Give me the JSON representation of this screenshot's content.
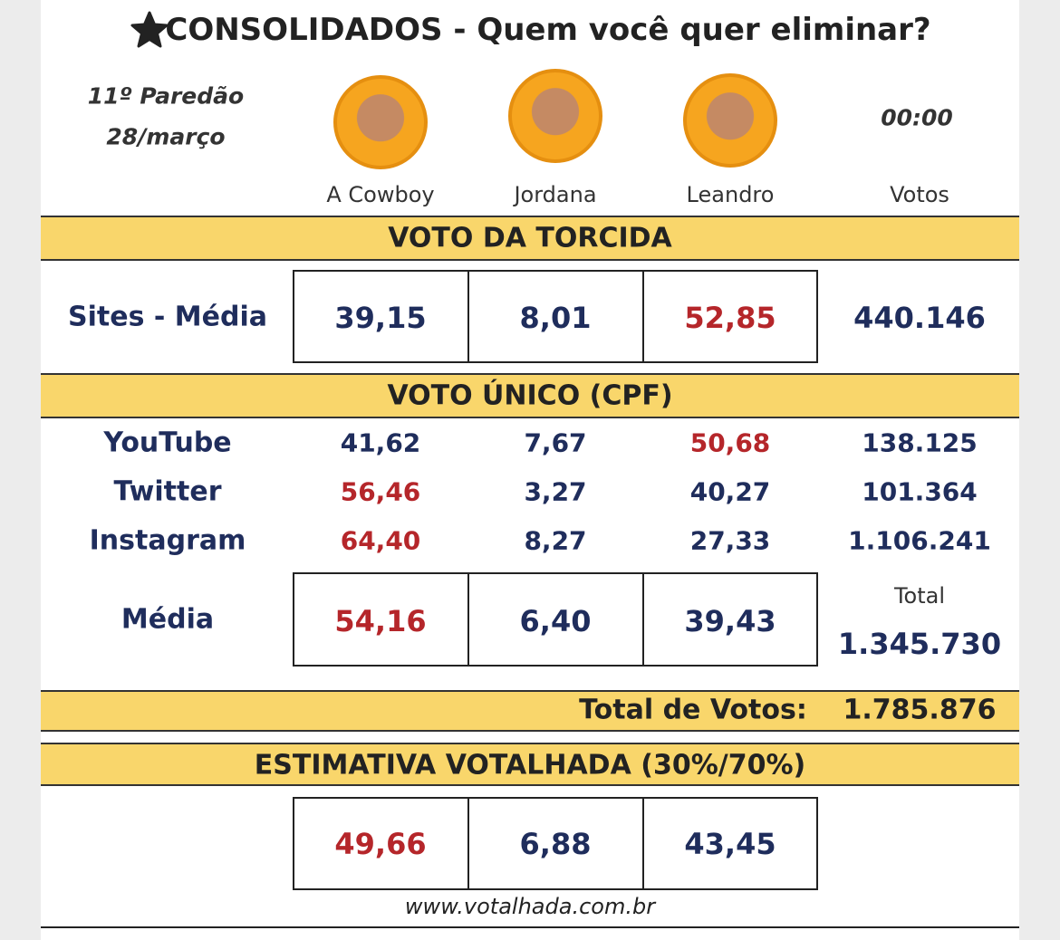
{
  "header": {
    "title": "CONSOLIDADOS - Quem você quer eliminar?",
    "paredao": "11º Paredão",
    "date": "28/março",
    "time": "00:00",
    "votes_label": "Votos"
  },
  "candidates": [
    "A Cowboy",
    "Jordana",
    "Leandro"
  ],
  "torcida": {
    "title": "VOTO DA TORCIDA",
    "rows": [
      {
        "label": "Sites - Média",
        "values": [
          "39,15",
          "8,01",
          "52,85"
        ],
        "colors": [
          "#1f2d5c",
          "#1f2d5c",
          "#b5262a"
        ],
        "votes": "440.146"
      }
    ]
  },
  "unico": {
    "title": "VOTO ÚNICO (CPF)",
    "rows": [
      {
        "label": "YouTube",
        "values": [
          "41,62",
          "7,67",
          "50,68"
        ],
        "colors": [
          "#1f2d5c",
          "#1f2d5c",
          "#b5262a"
        ],
        "votes": "138.125"
      },
      {
        "label": "Twitter",
        "values": [
          "56,46",
          "3,27",
          "40,27"
        ],
        "colors": [
          "#b5262a",
          "#1f2d5c",
          "#1f2d5c"
        ],
        "votes": "101.364"
      },
      {
        "label": "Instagram",
        "values": [
          "64,40",
          "8,27",
          "27,33"
        ],
        "colors": [
          "#b5262a",
          "#1f2d5c",
          "#1f2d5c"
        ],
        "votes": "1.106.241"
      }
    ],
    "media": {
      "label": "Média",
      "values": [
        "54,16",
        "6,40",
        "39,43"
      ],
      "colors": [
        "#b5262a",
        "#1f2d5c",
        "#1f2d5c"
      ],
      "total_label": "Total",
      "total": "1.345.730"
    }
  },
  "total": {
    "label": "Total de Votos:",
    "value": "1.785.876"
  },
  "estimativa": {
    "title": "ESTIMATIVA VOTALHADA (30%/70%)",
    "values": [
      "49,66",
      "6,88",
      "43,45"
    ],
    "colors": [
      "#b5262a",
      "#1f2d5c",
      "#1f2d5c"
    ]
  },
  "footer": {
    "url": "www.votalhada.com.br"
  }
}
